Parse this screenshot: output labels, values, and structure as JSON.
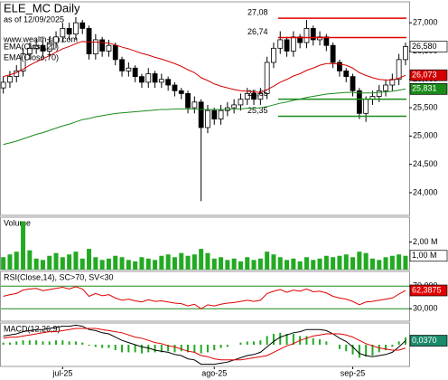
{
  "header": {
    "title": "ELE_MC Daily",
    "subtitle": "as of 12/09/2025",
    "watermark": "www.wealth-lab.com"
  },
  "chart_data": [
    {
      "type": "candlestick",
      "categories": [
        null,
        null,
        null,
        null,
        null,
        null,
        null,
        null,
        null,
        "jul-25",
        null,
        null,
        null,
        null,
        null,
        null,
        null,
        null,
        null,
        null,
        null,
        null,
        null,
        null,
        null,
        null,
        null,
        null,
        null,
        null,
        null,
        null,
        "ago-25",
        null,
        null,
        null,
        null,
        null,
        null,
        null,
        null,
        null,
        null,
        null,
        null,
        null,
        null,
        null,
        null,
        null,
        null,
        null,
        null,
        "sep-25",
        null,
        null,
        null,
        null,
        null,
        null,
        null,
        null
      ],
      "open": [
        25850,
        25950,
        26050,
        26150,
        26450,
        26550,
        26600,
        26500,
        26650,
        26750,
        26900,
        26800,
        27000,
        26900,
        26450,
        26700,
        26500,
        26600,
        26350,
        26150,
        26200,
        26050,
        25950,
        26100,
        25950,
        26000,
        25900,
        25800,
        25750,
        25500,
        25600,
        25150,
        25450,
        25300,
        25450,
        25500,
        25550,
        25650,
        25750,
        25650,
        25750,
        26300,
        26550,
        26700,
        26500,
        26750,
        26650,
        26900,
        26700,
        26750,
        26600,
        26300,
        26150,
        26050,
        25800,
        25400,
        25650,
        25700,
        25800,
        25900,
        26000,
        26350
      ],
      "high": [
        26050,
        26150,
        26250,
        26550,
        26650,
        26700,
        26700,
        26750,
        26850,
        27000,
        27000,
        27100,
        27050,
        26950,
        26800,
        26750,
        26700,
        26650,
        26400,
        26300,
        26250,
        26100,
        26200,
        26150,
        26100,
        26050,
        25950,
        25850,
        25800,
        25700,
        25650,
        25550,
        25500,
        25550,
        25600,
        25650,
        25750,
        25850,
        25800,
        25850,
        26400,
        26650,
        26850,
        26750,
        26850,
        26800,
        27050,
        26950,
        26850,
        26800,
        26650,
        26350,
        26200,
        26100,
        25850,
        25700,
        25800,
        25900,
        26000,
        26100,
        26450,
        26650
      ],
      "low": [
        25750,
        25850,
        25950,
        26050,
        26350,
        26450,
        26400,
        26400,
        26550,
        26650,
        26700,
        26700,
        26800,
        26350,
        26350,
        26400,
        26400,
        26250,
        26050,
        26050,
        25950,
        25850,
        25850,
        25850,
        25850,
        25800,
        25700,
        25650,
        25400,
        25400,
        23850,
        25050,
        25200,
        25200,
        25350,
        25400,
        25450,
        25550,
        25550,
        25550,
        25650,
        26200,
        26450,
        26400,
        26400,
        26550,
        26550,
        26600,
        26600,
        26500,
        26200,
        26050,
        25950,
        25700,
        25300,
        25250,
        25550,
        25600,
        25700,
        25800,
        25900,
        26250
      ],
      "close": [
        25950,
        26050,
        26150,
        26450,
        26550,
        26600,
        26500,
        26650,
        26750,
        26900,
        26800,
        27000,
        26900,
        26450,
        26700,
        26500,
        26600,
        26350,
        26150,
        26200,
        26050,
        25950,
        26100,
        25950,
        26000,
        25900,
        25800,
        25750,
        25500,
        25600,
        25150,
        25450,
        25300,
        25450,
        25500,
        25550,
        25650,
        25750,
        25650,
        25750,
        26300,
        26550,
        26700,
        26500,
        26750,
        26650,
        26900,
        26700,
        26750,
        26600,
        26300,
        26150,
        26050,
        25800,
        25400,
        25650,
        25700,
        25800,
        25900,
        26000,
        26350,
        26580
      ],
      "close_label": "26,580",
      "series": [
        {
          "name": "EMA(Close,21)",
          "color": "#d40000",
          "last_label": "26,073",
          "values": [
            26050,
            26080,
            26120,
            26180,
            26250,
            26310,
            26360,
            26420,
            26480,
            26540,
            26580,
            26630,
            26670,
            26660,
            26660,
            26650,
            26640,
            26610,
            26570,
            26540,
            26500,
            26460,
            26430,
            26390,
            26360,
            26320,
            26280,
            26230,
            26170,
            26120,
            26030,
            25980,
            25920,
            25880,
            25850,
            25820,
            25800,
            25790,
            25780,
            25770,
            25820,
            25880,
            25950,
            26000,
            26060,
            26100,
            26160,
            26200,
            26250,
            26280,
            26280,
            26270,
            26250,
            26200,
            26120,
            26070,
            26030,
            26000,
            25990,
            25990,
            26020,
            26073
          ]
        },
        {
          "name": "EMA(Close,70)",
          "color": "#1a8a1a",
          "last_label": "25,831",
          "values": [
            24850,
            24880,
            24910,
            24950,
            24990,
            25030,
            25060,
            25100,
            25140,
            25180,
            25210,
            25250,
            25290,
            25310,
            25340,
            25360,
            25380,
            25400,
            25410,
            25420,
            25430,
            25440,
            25450,
            25460,
            25470,
            25470,
            25480,
            25480,
            25480,
            25480,
            25470,
            25470,
            25470,
            25470,
            25470,
            25480,
            25480,
            25490,
            25490,
            25500,
            25520,
            25550,
            25580,
            25600,
            25630,
            25650,
            25680,
            25700,
            25720,
            25740,
            25750,
            25760,
            25770,
            25770,
            25760,
            25760,
            25760,
            25770,
            25780,
            25790,
            25810,
            25831
          ]
        }
      ],
      "levels": [
        {
          "value": 27080,
          "label": "27,08",
          "color": "#e00000"
        },
        {
          "value": 26740,
          "label": "26,74",
          "color": "#e00000"
        },
        {
          "value": 25650,
          "label": "25,65",
          "color": "#1a8a1a"
        },
        {
          "value": 25350,
          "label": "25,35",
          "color": "#1a8a1a"
        }
      ],
      "ylim": [
        23600,
        27370
      ],
      "yticks": [
        {
          "value": 24000,
          "label": "24,000"
        },
        {
          "value": 24500,
          "label": "24,500"
        },
        {
          "value": 25000,
          "label": "25,000"
        },
        {
          "value": 25500,
          "label": "25,500"
        },
        {
          "value": 26000,
          "label": "26,000"
        },
        {
          "value": 26500,
          "label": "26,500"
        },
        {
          "value": 27000,
          "label": "27,000"
        }
      ]
    },
    {
      "type": "bar",
      "title": "Volume",
      "color": "#22aa22",
      "last_label": "1,00 M",
      "values": [
        900000,
        1100000,
        1300000,
        3500000,
        1400000,
        800000,
        700000,
        1000000,
        1200000,
        900000,
        1100000,
        1300000,
        800000,
        1500000,
        900000,
        700000,
        800000,
        1000000,
        900000,
        700000,
        600000,
        900000,
        800000,
        700000,
        1000000,
        1100000,
        900000,
        1200000,
        1000000,
        1100000,
        1500000,
        1200000,
        800000,
        900000,
        700000,
        800000,
        600000,
        900000,
        700000,
        800000,
        1300000,
        1100000,
        900000,
        700000,
        800000,
        600000,
        900000,
        700000,
        800000,
        1000000,
        900000,
        1000000,
        1100000,
        900000,
        1300000,
        1200000,
        800000,
        700000,
        900000,
        1000000,
        1100000,
        1000000
      ],
      "ylim": [
        0,
        3800000
      ],
      "yticks": [
        {
          "value": 2000000,
          "label": "2,00 M"
        }
      ]
    },
    {
      "type": "line",
      "title": "RSI(Close,14), SC>70, SV<30",
      "grid_color": "#1a8a1a",
      "series": [
        {
          "color": "#e00000",
          "last_label": "62,3875",
          "values": [
            52,
            55,
            57,
            63,
            65,
            66,
            62,
            64,
            66,
            68,
            65,
            69,
            65,
            52,
            57,
            53,
            55,
            49,
            45,
            47,
            44,
            42,
            46,
            43,
            44,
            42,
            40,
            39,
            35,
            38,
            30,
            37,
            35,
            38,
            40,
            41,
            43,
            45,
            43,
            45,
            57,
            61,
            64,
            59,
            63,
            61,
            65,
            60,
            61,
            58,
            52,
            49,
            47,
            43,
            37,
            42,
            43,
            45,
            47,
            49,
            56,
            62.3875
          ]
        }
      ],
      "ylim": [
        8,
        96
      ],
      "yticks": [
        {
          "value": 70,
          "label": "70,000"
        },
        {
          "value": 30,
          "label": "30,000"
        }
      ]
    },
    {
      "type": "line",
      "title": "MACD(12,26,9)",
      "series": [
        {
          "color": "#000000",
          "last_label": "0,0370",
          "values": [
            0.08,
            0.09,
            0.1,
            0.12,
            0.13,
            0.14,
            0.14,
            0.15,
            0.16,
            0.17,
            0.17,
            0.18,
            0.17,
            0.14,
            0.13,
            0.11,
            0.1,
            0.07,
            0.04,
            0.02,
            0,
            -0.02,
            -0.03,
            -0.05,
            -0.06,
            -0.07,
            -0.09,
            -0.1,
            -0.13,
            -0.14,
            -0.18,
            -0.18,
            -0.18,
            -0.17,
            -0.16,
            -0.14,
            -0.12,
            -0.1,
            -0.09,
            -0.07,
            -0.02,
            0.03,
            0.07,
            0.09,
            0.11,
            0.12,
            0.14,
            0.14,
            0.14,
            0.13,
            0.1,
            0.06,
            0.03,
            -0.02,
            -0.08,
            -0.1,
            -0.11,
            -0.1,
            -0.09,
            -0.07,
            -0.02,
            0.037
          ]
        },
        {
          "color": "#e00000",
          "values": [
            0.06,
            0.07,
            0.07,
            0.08,
            0.09,
            0.1,
            0.11,
            0.12,
            0.12,
            0.13,
            0.14,
            0.15,
            0.15,
            0.15,
            0.15,
            0.14,
            0.13,
            0.12,
            0.11,
            0.09,
            0.07,
            0.06,
            0.04,
            0.02,
            0.01,
            -0.01,
            -0.02,
            -0.04,
            -0.06,
            -0.07,
            -0.1,
            -0.11,
            -0.13,
            -0.14,
            -0.14,
            -0.14,
            -0.14,
            -0.13,
            -0.12,
            -0.11,
            -0.1,
            -0.07,
            -0.04,
            -0.01,
            0.01,
            0.04,
            0.06,
            0.08,
            0.09,
            0.1,
            0.1,
            0.1,
            0.09,
            0.07,
            0.04,
            0.01,
            -0.01,
            -0.03,
            -0.04,
            -0.05,
            -0.05,
            -0.03
          ]
        }
      ],
      "histogram": [
        0.02,
        0.02,
        0.03,
        0.04,
        0.04,
        0.04,
        0.03,
        0.03,
        0.04,
        0.04,
        0.03,
        0.03,
        0.02,
        -0.01,
        -0.02,
        -0.03,
        -0.03,
        -0.05,
        -0.07,
        -0.07,
        -0.07,
        -0.08,
        -0.07,
        -0.07,
        -0.07,
        -0.06,
        -0.07,
        -0.06,
        -0.07,
        -0.07,
        -0.08,
        -0.07,
        -0.05,
        -0.03,
        -0.02,
        0,
        0.02,
        0.03,
        0.03,
        0.04,
        0.08,
        0.1,
        0.11,
        0.1,
        0.1,
        0.08,
        0.08,
        0.06,
        0.05,
        0.03,
        0,
        -0.04,
        -0.06,
        -0.09,
        -0.12,
        -0.11,
        -0.1,
        -0.07,
        -0.05,
        -0.02,
        0.03,
        0.067
      ],
      "histogram_color": "#22aa22",
      "ylim": [
        -0.2,
        0.2
      ]
    }
  ]
}
